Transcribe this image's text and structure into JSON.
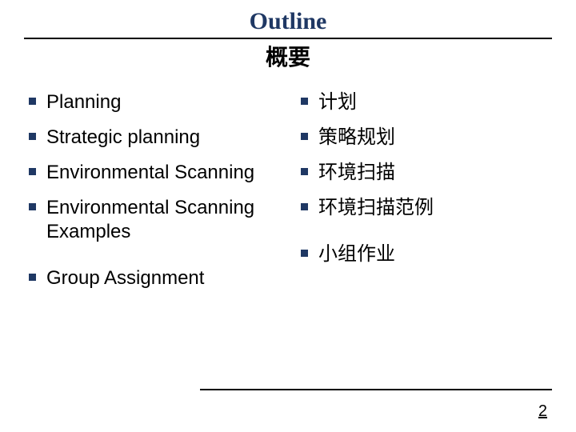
{
  "colors": {
    "accent": "#1f3864",
    "text": "#000000",
    "background": "#ffffff",
    "rule": "#000000"
  },
  "typography": {
    "title_en_font": "Times New Roman",
    "title_en_size_pt": 22,
    "title_cn_size_pt": 21,
    "body_size_pt": 18
  },
  "title": {
    "en": "Outline",
    "cn": "概要"
  },
  "left_items": [
    {
      "text": "Planning",
      "gap_before": false
    },
    {
      "text": "Strategic planning",
      "gap_before": false
    },
    {
      "text": "Environmental Scanning",
      "gap_before": false
    },
    {
      "text": "Environmental Scanning Examples",
      "gap_before": false
    },
    {
      "text": "Group Assignment",
      "gap_before": true
    }
  ],
  "right_items": [
    {
      "text": "计划",
      "gap_before": false
    },
    {
      "text": "策略规划",
      "gap_before": false
    },
    {
      "text": "环境扫描",
      "gap_before": false
    },
    {
      "text": "环境扫描范例",
      "gap_before": false
    },
    {
      "text": "小组作业",
      "gap_before": true
    }
  ],
  "page_number": "2"
}
